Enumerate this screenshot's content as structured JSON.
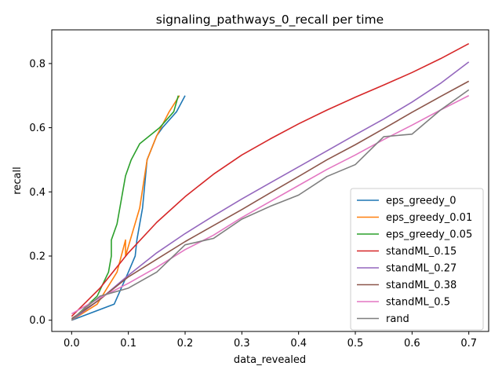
{
  "chart_data": {
    "type": "line",
    "title": "signaling_pathways_0_recall per time",
    "xlabel": "data_revealed",
    "ylabel": "recall",
    "xlim": [
      -0.035,
      0.735
    ],
    "ylim": [
      -0.035,
      0.905
    ],
    "xticks": [
      0.0,
      0.1,
      0.2,
      0.3,
      0.4,
      0.5,
      0.6,
      0.7
    ],
    "xtick_labels": [
      "0.0",
      "0.1",
      "0.2",
      "0.3",
      "0.4",
      "0.5",
      "0.6",
      "0.7"
    ],
    "yticks": [
      0.0,
      0.2,
      0.4,
      0.6,
      0.8
    ],
    "ytick_labels": [
      "0.0",
      "0.2",
      "0.4",
      "0.6",
      "0.8"
    ],
    "grid": false,
    "legend_position": "lower-right",
    "series": [
      {
        "name": "eps_greedy_0",
        "color": "#1f77b4",
        "points": [
          [
            0.0,
            0.0
          ],
          [
            0.075,
            0.05
          ],
          [
            0.1,
            0.15
          ],
          [
            0.112,
            0.2
          ],
          [
            0.115,
            0.25
          ],
          [
            0.125,
            0.35
          ],
          [
            0.133,
            0.5
          ],
          [
            0.15,
            0.575
          ],
          [
            0.16,
            0.6
          ],
          [
            0.185,
            0.65
          ],
          [
            0.2,
            0.7
          ]
        ]
      },
      {
        "name": "eps_greedy_0.01",
        "color": "#ff7f0e",
        "points": [
          [
            0.0,
            0.0
          ],
          [
            0.045,
            0.05
          ],
          [
            0.08,
            0.15
          ],
          [
            0.095,
            0.25
          ],
          [
            0.095,
            0.2
          ],
          [
            0.12,
            0.35
          ],
          [
            0.133,
            0.5
          ],
          [
            0.15,
            0.575
          ],
          [
            0.172,
            0.65
          ],
          [
            0.19,
            0.7
          ]
        ]
      },
      {
        "name": "eps_greedy_0.05",
        "color": "#2ca02c",
        "points": [
          [
            0.0,
            0.0
          ],
          [
            0.045,
            0.075
          ],
          [
            0.065,
            0.15
          ],
          [
            0.07,
            0.2
          ],
          [
            0.07,
            0.25
          ],
          [
            0.08,
            0.3
          ],
          [
            0.09,
            0.4
          ],
          [
            0.095,
            0.45
          ],
          [
            0.105,
            0.5
          ],
          [
            0.12,
            0.55
          ],
          [
            0.155,
            0.6
          ],
          [
            0.18,
            0.65
          ],
          [
            0.188,
            0.7
          ]
        ]
      },
      {
        "name": "standML_0.15",
        "color": "#d62728",
        "points": [
          [
            0.0,
            0.012
          ],
          [
            0.05,
            0.1
          ],
          [
            0.1,
            0.21
          ],
          [
            0.15,
            0.305
          ],
          [
            0.2,
            0.385
          ],
          [
            0.25,
            0.455
          ],
          [
            0.3,
            0.515
          ],
          [
            0.35,
            0.565
          ],
          [
            0.4,
            0.612
          ],
          [
            0.45,
            0.655
          ],
          [
            0.5,
            0.695
          ],
          [
            0.55,
            0.733
          ],
          [
            0.6,
            0.772
          ],
          [
            0.65,
            0.815
          ],
          [
            0.7,
            0.862
          ]
        ]
      },
      {
        "name": "standML_0.27",
        "color": "#9467bd",
        "points": [
          [
            0.0,
            0.0
          ],
          [
            0.05,
            0.065
          ],
          [
            0.1,
            0.14
          ],
          [
            0.15,
            0.21
          ],
          [
            0.2,
            0.27
          ],
          [
            0.25,
            0.325
          ],
          [
            0.3,
            0.378
          ],
          [
            0.35,
            0.428
          ],
          [
            0.4,
            0.478
          ],
          [
            0.45,
            0.528
          ],
          [
            0.5,
            0.578
          ],
          [
            0.55,
            0.627
          ],
          [
            0.6,
            0.68
          ],
          [
            0.65,
            0.738
          ],
          [
            0.7,
            0.805
          ]
        ]
      },
      {
        "name": "standML_0.38",
        "color": "#8c564b",
        "points": [
          [
            0.0,
            0.005
          ],
          [
            0.05,
            0.065
          ],
          [
            0.1,
            0.135
          ],
          [
            0.15,
            0.19
          ],
          [
            0.2,
            0.245
          ],
          [
            0.25,
            0.295
          ],
          [
            0.3,
            0.345
          ],
          [
            0.35,
            0.397
          ],
          [
            0.4,
            0.448
          ],
          [
            0.45,
            0.5
          ],
          [
            0.5,
            0.547
          ],
          [
            0.55,
            0.597
          ],
          [
            0.6,
            0.648
          ],
          [
            0.65,
            0.697
          ],
          [
            0.7,
            0.745
          ]
        ]
      },
      {
        "name": "standML_0.5",
        "color": "#e377c2",
        "points": [
          [
            0.0,
            0.02
          ],
          [
            0.05,
            0.07
          ],
          [
            0.1,
            0.115
          ],
          [
            0.15,
            0.165
          ],
          [
            0.2,
            0.22
          ],
          [
            0.25,
            0.265
          ],
          [
            0.3,
            0.32
          ],
          [
            0.35,
            0.37
          ],
          [
            0.4,
            0.42
          ],
          [
            0.45,
            0.47
          ],
          [
            0.5,
            0.515
          ],
          [
            0.55,
            0.563
          ],
          [
            0.6,
            0.608
          ],
          [
            0.65,
            0.655
          ],
          [
            0.7,
            0.7
          ]
        ]
      },
      {
        "name": "rand",
        "color": "#7f7f7f",
        "points": [
          [
            0.0,
            0.0
          ],
          [
            0.025,
            0.04
          ],
          [
            0.05,
            0.075
          ],
          [
            0.1,
            0.1
          ],
          [
            0.15,
            0.15
          ],
          [
            0.2,
            0.235
          ],
          [
            0.25,
            0.255
          ],
          [
            0.3,
            0.315
          ],
          [
            0.35,
            0.355
          ],
          [
            0.4,
            0.39
          ],
          [
            0.45,
            0.448
          ],
          [
            0.5,
            0.485
          ],
          [
            0.55,
            0.572
          ],
          [
            0.6,
            0.58
          ],
          [
            0.65,
            0.655
          ],
          [
            0.7,
            0.718
          ]
        ]
      }
    ]
  }
}
